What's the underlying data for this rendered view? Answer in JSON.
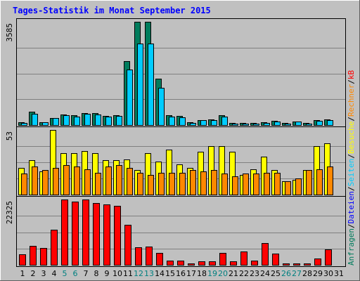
{
  "chart_data": {
    "type": "bar",
    "title": "Tages-Statistik im Monat September 2015",
    "categories": [
      "1",
      "2",
      "3",
      "4",
      "5",
      "6",
      "7",
      "8",
      "9",
      "10",
      "11",
      "12",
      "13",
      "14",
      "15",
      "16",
      "17",
      "18",
      "19",
      "20",
      "21",
      "22",
      "23",
      "24",
      "25",
      "26",
      "27",
      "28",
      "29",
      "30",
      "31"
    ],
    "weekend_categories": [
      "5",
      "6",
      "12",
      "13",
      "19",
      "20",
      "26",
      "27"
    ],
    "panels": [
      {
        "ymax_label": "3585",
        "ymax": 3585,
        "series": [
          {
            "name": "Anfragen",
            "color": "#007c5c",
            "values": [
              90,
              455,
              100,
              255,
              375,
              330,
              420,
              405,
              305,
              340,
              2220,
              3585,
              3585,
              1620,
              330,
              310,
              100,
              175,
              185,
              350,
              70,
              70,
              75,
              100,
              155,
              65,
              130,
              80,
              175,
              185,
              0
            ]
          },
          {
            "name": "Dateien",
            "color": "#00ccff",
            "values": [
              80,
              400,
              90,
              255,
              340,
              300,
              390,
              370,
              285,
              325,
              1930,
              2840,
              2840,
              1290,
              290,
              270,
              85,
              160,
              170,
              300,
              60,
              60,
              60,
              85,
              130,
              45,
              110,
              60,
              150,
              160,
              0
            ]
          }
        ]
      },
      {
        "ymax_label": "53",
        "ymax": 53,
        "series": [
          {
            "name": "Seiten",
            "color": "#ffff00",
            "values": [
              22,
              28,
              19,
              53,
              34,
              34,
              36,
              34,
              28,
              28,
              29,
              20,
              34,
              27,
              37,
              25,
              22,
              35,
              40,
              40,
              35,
              16,
              21,
              31,
              20,
              11,
              12,
              20,
              40,
              42,
              0
            ]
          },
          {
            "name": "Besuche",
            "color": "#ff8800",
            "values": [
              17,
              23,
              20,
              22,
              24,
              23,
              21,
              18,
              23,
              24,
              22,
              18,
              16,
              18,
              18,
              18,
              20,
              19,
              20,
              17,
              15,
              17,
              17,
              18,
              18,
              11,
              13,
              20,
              21,
              23,
              0
            ]
          }
        ]
      },
      {
        "ymax_label": "22325",
        "ymax": 22325,
        "series": [
          {
            "name": "kB",
            "color": "#ff0000",
            "values": [
              3500,
              6500,
              5800,
              12000,
              22325,
              21700,
              22325,
              21200,
              20700,
              20100,
              13800,
              6000,
              6200,
              4200,
              1400,
              1400,
              600,
              1100,
              1200,
              4200,
              1200,
              4600,
              1400,
              7500,
              3900,
              250,
              250,
              250,
              2200,
              5200,
              0
            ]
          }
        ]
      }
    ],
    "side_label_right": [
      {
        "text": "Anfragen",
        "color": "#007c5c"
      },
      {
        "text": "/",
        "color": "#000000"
      },
      {
        "text": "Dateien",
        "color": "#0000ff"
      },
      {
        "text": "/",
        "color": "#000000"
      },
      {
        "text": "Seiten",
        "color": "#00ccff"
      },
      {
        "text": "/",
        "color": "#000000"
      },
      {
        "text": "Besuche",
        "color": "#ffff00"
      },
      {
        "text": "/",
        "color": "#000000"
      },
      {
        "text": "Rechner",
        "color": "#ff8800"
      },
      {
        "text": "/",
        "color": "#000000"
      },
      {
        "text": "kB",
        "color": "#ff0000"
      }
    ],
    "title_color": "#0000ff",
    "background_color": "#c0c0c0",
    "grid": true
  }
}
